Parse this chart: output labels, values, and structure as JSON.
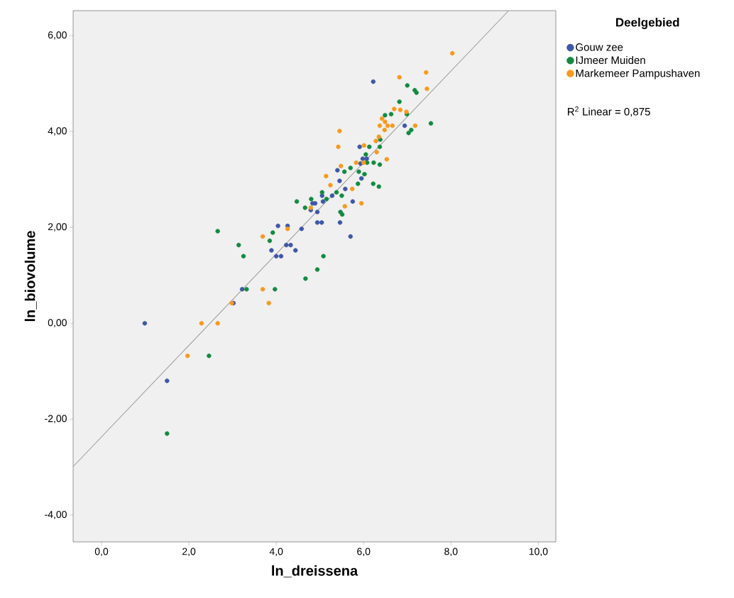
{
  "chart_data": {
    "type": "scatter",
    "xlabel": "ln_dreissena",
    "ylabel": "ln_biovolume",
    "legend_title": "Deelgebied",
    "legend": "right",
    "marker": "circle",
    "xlim": [
      -0.65,
      10.4
    ],
    "ylim": [
      -4.56,
      6.52
    ],
    "xticks": [
      {
        "value": 0,
        "label": "0,0"
      },
      {
        "value": 2,
        "label": "2,0"
      },
      {
        "value": 4,
        "label": "4,0"
      },
      {
        "value": 6,
        "label": "6,0"
      },
      {
        "value": 8,
        "label": "8,0"
      },
      {
        "value": 10,
        "label": "10,0"
      }
    ],
    "yticks": [
      {
        "value": -4,
        "label": "-4,00"
      },
      {
        "value": -2,
        "label": "-2,00"
      },
      {
        "value": 0,
        "label": "0,00"
      },
      {
        "value": 2,
        "label": "2,00"
      },
      {
        "value": 4,
        "label": "4,00"
      },
      {
        "value": 6,
        "label": "6,00"
      }
    ],
    "annotations": [
      "R$^{2}$ Linear = 0,875"
    ],
    "series": [
      {
        "name": "Gouw zee",
        "color": "#3e57a6",
        "x": [
          0.99,
          1.5,
          3.02,
          3.22,
          4.04,
          4.26,
          3.89,
          4.0,
          4.11,
          4.23,
          4.33,
          4.44,
          4.58,
          5.7,
          4.94,
          5.04,
          5.46,
          4.83,
          4.89,
          4.79,
          4.94,
          5.05,
          5.07,
          5.28,
          5.58,
          5.75,
          5.45,
          5.4,
          5.95,
          5.93,
          5.98,
          6.07,
          5.91,
          6.22,
          6.94
        ],
        "values": [
          0.0,
          -1.2,
          0.42,
          0.71,
          2.03,
          2.03,
          1.52,
          1.4,
          1.4,
          1.63,
          1.63,
          1.52,
          1.97,
          1.81,
          2.1,
          2.1,
          2.1,
          2.5,
          2.5,
          2.36,
          2.32,
          2.66,
          2.54,
          2.66,
          2.8,
          2.54,
          2.97,
          3.19,
          3.02,
          3.33,
          3.43,
          3.43,
          3.68,
          5.04,
          4.12
        ]
      },
      {
        "name": "IJmeer Muiden",
        "color": "#138a41",
        "x": [
          3.92,
          3.85,
          3.97,
          4.67,
          4.94,
          5.08,
          4.47,
          4.66,
          4.8,
          5.05,
          5.15,
          5.38,
          5.5,
          5.47,
          5.51,
          5.56,
          5.7,
          5.89,
          5.87,
          6.02,
          6.08,
          6.05,
          6.23,
          6.22,
          6.35,
          6.37,
          6.13,
          6.37,
          6.38,
          7.03,
          7.0,
          7.17,
          7.21,
          6.82,
          6.49,
          6.63,
          6.99,
          7.54,
          7.09,
          2.66,
          3.14,
          3.25,
          2.46,
          1.5,
          3.32
        ],
        "values": [
          1.89,
          1.72,
          0.71,
          0.93,
          1.12,
          1.4,
          2.54,
          2.41,
          2.59,
          2.73,
          2.59,
          2.73,
          2.66,
          2.32,
          2.27,
          3.16,
          3.24,
          3.16,
          2.91,
          3.11,
          3.35,
          3.52,
          3.35,
          2.91,
          2.85,
          3.31,
          3.68,
          3.68,
          3.83,
          3.97,
          4.96,
          4.86,
          4.81,
          4.62,
          4.34,
          4.36,
          4.36,
          4.17,
          4.03,
          1.92,
          1.63,
          1.4,
          -0.68,
          -2.3,
          0.71
        ]
      },
      {
        "name": "Markemeer Pampushaven",
        "color": "#f7991e",
        "x": [
          4.26,
          4.79,
          5.74,
          5.57,
          5.95,
          5.24,
          5.14,
          5.48,
          5.83,
          6.0,
          6.53,
          5.42,
          5.45,
          6.01,
          6.3,
          6.28,
          6.35,
          8.03,
          7.43,
          6.82,
          7.45,
          6.7,
          6.84,
          6.98,
          6.42,
          6.49,
          6.37,
          6.55,
          6.66,
          7.18,
          6.48,
          3.69,
          2.29,
          2.66,
          1.97,
          2.98,
          3.69,
          3.83
        ],
        "values": [
          1.97,
          2.41,
          2.8,
          2.44,
          2.5,
          2.88,
          3.07,
          3.28,
          3.35,
          3.35,
          3.42,
          3.68,
          4.01,
          3.71,
          3.57,
          3.8,
          3.89,
          5.63,
          5.23,
          5.13,
          4.89,
          4.47,
          4.45,
          4.41,
          4.27,
          4.2,
          4.12,
          4.12,
          4.12,
          4.12,
          4.03,
          1.81,
          0.0,
          0.0,
          -0.68,
          0.42,
          0.71,
          0.42
        ]
      },
      {
        "type": "line",
        "color": "#999999",
        "marker": "none",
        "line_style": "solid",
        "x": [
          -0.65,
          9.32
        ],
        "values": [
          -2.99,
          6.52
        ]
      }
    ]
  }
}
